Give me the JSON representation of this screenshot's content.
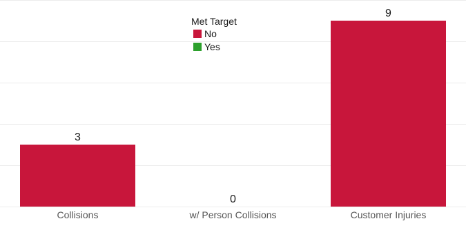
{
  "colors": {
    "no": "#C8163B",
    "yes": "#2CA02C",
    "grid": "#ECECEC",
    "text": "#1a1a1a",
    "tick_text": "#555555"
  },
  "legend": {
    "title": "Met Target",
    "items": [
      {
        "label": "No",
        "color": "#C8163B"
      },
      {
        "label": "Yes",
        "color": "#2CA02C"
      }
    ]
  },
  "chart_data": {
    "type": "bar",
    "categories": [
      "Collisions",
      "w/ Person Collisions",
      "Customer Injuries"
    ],
    "series": [
      {
        "name": "No",
        "values": [
          3,
          0,
          9
        ]
      }
    ],
    "data_labels": [
      "3",
      "0",
      "9"
    ],
    "ylim": [
      0,
      10
    ],
    "grid": true,
    "legend_position": "top-center"
  }
}
